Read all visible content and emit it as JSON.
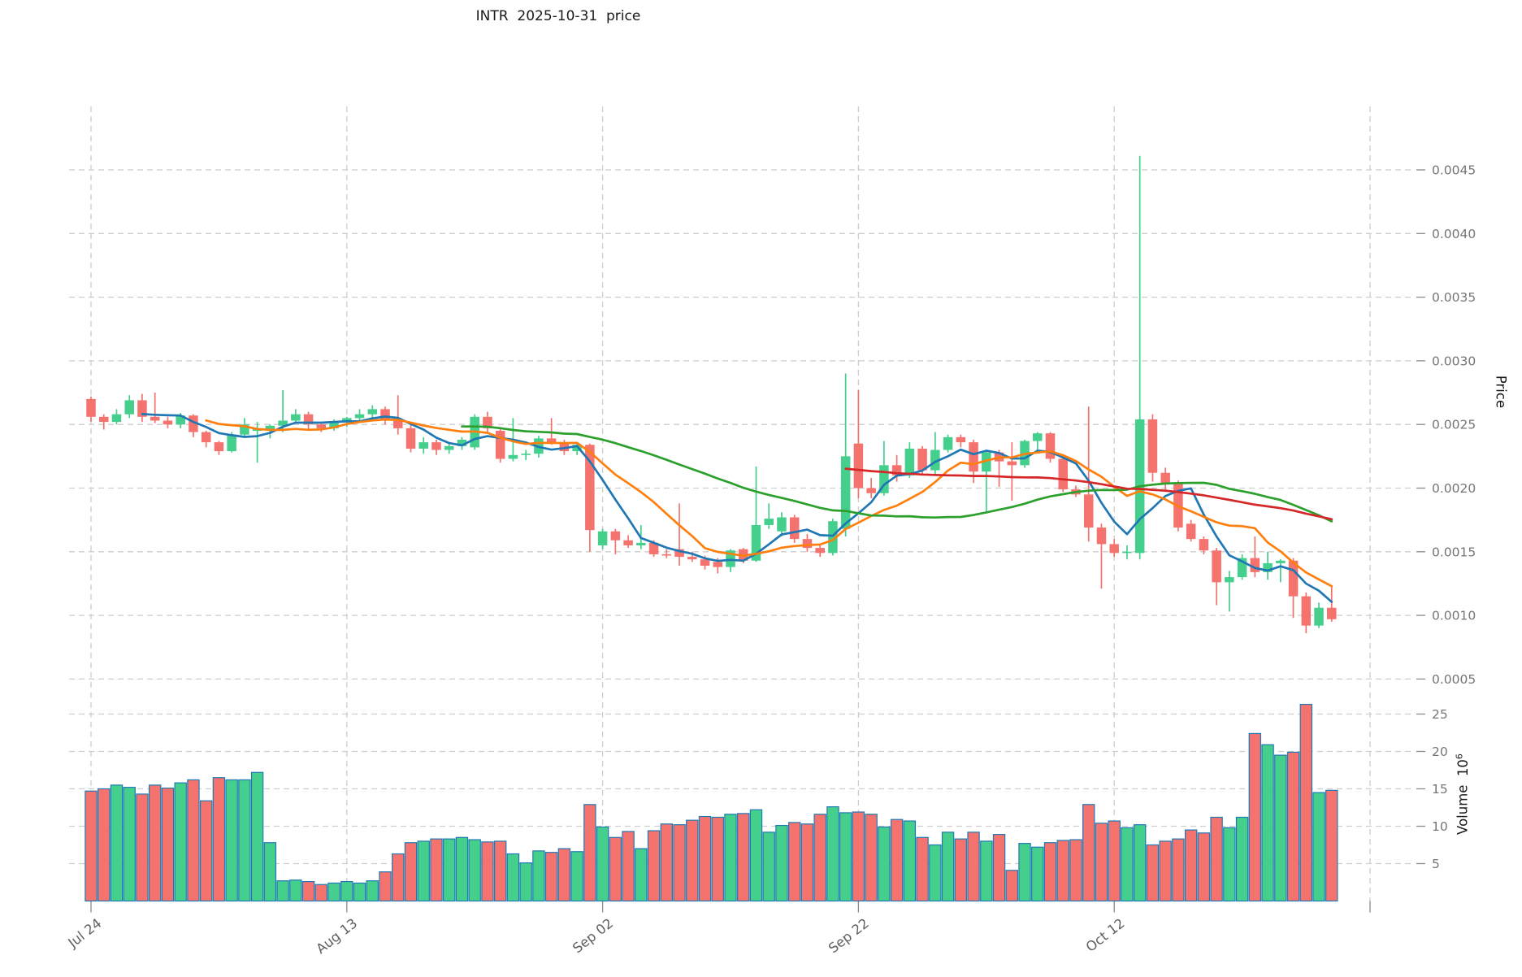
{
  "title": "INTR  2025-10-31  price",
  "chart_data": {
    "type": "candlestick",
    "title": "INTR  2025-10-31  price",
    "x_axis": {
      "tick_labels": [
        "Jul 24",
        "Aug 13",
        "Sep 02",
        "Sep 22",
        "Oct 12"
      ],
      "tick_days": [
        0,
        20,
        40,
        60,
        80,
        100
      ],
      "grid": true
    },
    "price_axis": {
      "label": "Price",
      "ticks": [
        0.0005,
        0.001,
        0.0015,
        0.002,
        0.0025,
        0.003,
        0.0035,
        0.004,
        0.0045
      ],
      "range": [
        0.0002,
        0.005
      ],
      "side": "right",
      "grid": true
    },
    "volume_axis": {
      "label": "Volume",
      "scale_base": "10",
      "scale_exp": "6",
      "ticks": [
        5,
        10,
        15,
        20,
        25
      ],
      "unit_multiplier": 1000000,
      "side": "right",
      "grid": true
    },
    "moving_averages": [
      {
        "name": "mav-5",
        "period": 5,
        "color": "#1f77b4"
      },
      {
        "name": "mav-10",
        "period": 10,
        "color": "#ff7f0e"
      },
      {
        "name": "mav-30",
        "period": 30,
        "color": "#2ca02c"
      },
      {
        "name": "mav-60",
        "period": 60,
        "color": "#d62728"
      }
    ],
    "colors": {
      "up": "#45cf8d",
      "down": "#f4736e",
      "volume_bar_edge": "#2079b4",
      "grid": "#cdcdcd",
      "tick_text": "#757575",
      "x_tick_text": "#5f5f5f"
    },
    "candle_format": [
      "open",
      "high",
      "low",
      "close",
      "volume_millions"
    ],
    "candles": [
      [
        0.0027,
        0.00272,
        0.00252,
        0.00256,
        14.7
      ],
      [
        0.00256,
        0.00258,
        0.00246,
        0.00252,
        15.0
      ],
      [
        0.00252,
        0.00262,
        0.0025,
        0.00258,
        15.5
      ],
      [
        0.00258,
        0.00273,
        0.00255,
        0.00269,
        15.2
      ],
      [
        0.00269,
        0.00274,
        0.00252,
        0.00256,
        14.3
      ],
      [
        0.00256,
        0.00275,
        0.00251,
        0.00253,
        15.5
      ],
      [
        0.00253,
        0.00256,
        0.00247,
        0.0025,
        15.1
      ],
      [
        0.0025,
        0.00259,
        0.00247,
        0.00257,
        15.8
      ],
      [
        0.00257,
        0.00258,
        0.0024,
        0.00244,
        16.2
      ],
      [
        0.00244,
        0.00245,
        0.00232,
        0.00236,
        13.4
      ],
      [
        0.00236,
        0.00237,
        0.00226,
        0.00229,
        16.5
      ],
      [
        0.00229,
        0.00244,
        0.00228,
        0.00242,
        16.2
      ],
      [
        0.00242,
        0.00255,
        0.00241,
        0.0025,
        16.2
      ],
      [
        0.00245,
        0.00252,
        0.0022,
        0.00247,
        17.2
      ],
      [
        0.00246,
        0.0025,
        0.00239,
        0.00249,
        7.8
      ],
      [
        0.00249,
        0.00277,
        0.00244,
        0.00253,
        2.7
      ],
      [
        0.00253,
        0.00262,
        0.00251,
        0.00258,
        2.8
      ],
      [
        0.00258,
        0.0026,
        0.00246,
        0.0025,
        2.6
      ],
      [
        0.0025,
        0.00252,
        0.00244,
        0.00247,
        2.2
      ],
      [
        0.00247,
        0.00254,
        0.00245,
        0.00252,
        2.4
      ],
      [
        0.00252,
        0.00256,
        0.00248,
        0.00255,
        2.6
      ],
      [
        0.00255,
        0.00262,
        0.00253,
        0.00258,
        2.4
      ],
      [
        0.00258,
        0.00265,
        0.00254,
        0.00262,
        2.7
      ],
      [
        0.00262,
        0.00264,
        0.0025,
        0.00254,
        3.9
      ],
      [
        0.00254,
        0.00273,
        0.00242,
        0.00247,
        6.3
      ],
      [
        0.00247,
        0.0025,
        0.00228,
        0.00231,
        7.8
      ],
      [
        0.00231,
        0.0024,
        0.00227,
        0.00236,
        8.0
      ],
      [
        0.00236,
        0.00238,
        0.00226,
        0.0023,
        8.3
      ],
      [
        0.0023,
        0.00236,
        0.00227,
        0.00233,
        8.3
      ],
      [
        0.00233,
        0.0024,
        0.0023,
        0.00238,
        8.5
      ],
      [
        0.00232,
        0.00258,
        0.0023,
        0.00256,
        8.2
      ],
      [
        0.00256,
        0.0026,
        0.00244,
        0.00247,
        7.9
      ],
      [
        0.00245,
        0.00247,
        0.0022,
        0.00223,
        8.0
      ],
      [
        0.00223,
        0.00255,
        0.00221,
        0.00226,
        6.3
      ],
      [
        0.00226,
        0.0023,
        0.00222,
        0.00227,
        5.1
      ],
      [
        0.00227,
        0.00241,
        0.00224,
        0.00239,
        6.7
      ],
      [
        0.00239,
        0.00255,
        0.00234,
        0.00236,
        6.5
      ],
      [
        0.00236,
        0.00238,
        0.00226,
        0.00229,
        7.0
      ],
      [
        0.00229,
        0.00236,
        0.00226,
        0.00234,
        6.6
      ],
      [
        0.00234,
        0.00235,
        0.0015,
        0.00167,
        12.9
      ],
      [
        0.00155,
        0.00168,
        0.00152,
        0.00166,
        9.9
      ],
      [
        0.00166,
        0.00168,
        0.00148,
        0.00159,
        8.5
      ],
      [
        0.00159,
        0.00163,
        0.00153,
        0.00155,
        9.3
      ],
      [
        0.00155,
        0.00171,
        0.00152,
        0.00157,
        7.0
      ],
      [
        0.00157,
        0.00159,
        0.00146,
        0.00148,
        9.4
      ],
      [
        0.00148,
        0.00152,
        0.00145,
        0.00147,
        10.3
      ],
      [
        0.00152,
        0.00188,
        0.00139,
        0.00146,
        10.2
      ],
      [
        0.00146,
        0.0015,
        0.00142,
        0.00144,
        10.8
      ],
      [
        0.00144,
        0.00147,
        0.00136,
        0.00139,
        11.3
      ],
      [
        0.00142,
        0.00145,
        0.00133,
        0.00138,
        11.2
      ],
      [
        0.00138,
        0.00152,
        0.00134,
        0.00151,
        11.6
      ],
      [
        0.00152,
        0.00153,
        0.00141,
        0.00143,
        11.7
      ],
      [
        0.00143,
        0.00217,
        0.00142,
        0.00171,
        12.2
      ],
      [
        0.00171,
        0.00188,
        0.00168,
        0.00176,
        9.2
      ],
      [
        0.00166,
        0.00181,
        0.00162,
        0.00177,
        10.1
      ],
      [
        0.00177,
        0.00179,
        0.00157,
        0.0016,
        10.5
      ],
      [
        0.0016,
        0.00164,
        0.0015,
        0.00153,
        10.3
      ],
      [
        0.00153,
        0.00156,
        0.00146,
        0.00149,
        11.6
      ],
      [
        0.00149,
        0.00176,
        0.00147,
        0.00174,
        12.6
      ],
      [
        0.00168,
        0.0029,
        0.00162,
        0.00225,
        11.8
      ],
      [
        0.00235,
        0.00277,
        0.00192,
        0.002,
        11.9
      ],
      [
        0.002,
        0.00208,
        0.00192,
        0.00196,
        11.6
      ],
      [
        0.00196,
        0.00237,
        0.00194,
        0.00218,
        9.9
      ],
      [
        0.00218,
        0.00226,
        0.00205,
        0.0021,
        10.9
      ],
      [
        0.0021,
        0.00236,
        0.00208,
        0.00231,
        10.7
      ],
      [
        0.00231,
        0.00233,
        0.0021,
        0.00214,
        8.5
      ],
      [
        0.00214,
        0.00244,
        0.0021,
        0.0023,
        7.5
      ],
      [
        0.0023,
        0.00242,
        0.00228,
        0.0024,
        9.2
      ],
      [
        0.0024,
        0.00242,
        0.00232,
        0.00236,
        8.3
      ],
      [
        0.00236,
        0.00238,
        0.00204,
        0.00213,
        9.2
      ],
      [
        0.00213,
        0.0023,
        0.0018,
        0.00228,
        8.0
      ],
      [
        0.00228,
        0.0023,
        0.00201,
        0.00221,
        8.9
      ],
      [
        0.00221,
        0.00236,
        0.0019,
        0.00218,
        4.1
      ],
      [
        0.00218,
        0.00238,
        0.00216,
        0.00237,
        7.7
      ],
      [
        0.00237,
        0.00244,
        0.00228,
        0.00243,
        7.2
      ],
      [
        0.00243,
        0.00244,
        0.0022,
        0.00223,
        7.8
      ],
      [
        0.00223,
        0.00226,
        0.00197,
        0.00199,
        8.1
      ],
      [
        0.00199,
        0.00202,
        0.00193,
        0.00195,
        8.2
      ],
      [
        0.00195,
        0.00264,
        0.00158,
        0.00169,
        12.9
      ],
      [
        0.00169,
        0.00172,
        0.00121,
        0.00156,
        10.4
      ],
      [
        0.00156,
        0.0016,
        0.00146,
        0.00149,
        10.7
      ],
      [
        0.00149,
        0.00155,
        0.00144,
        0.0015,
        9.8
      ],
      [
        0.00149,
        0.00461,
        0.00144,
        0.00254,
        10.2
      ],
      [
        0.00254,
        0.00258,
        0.00205,
        0.00212,
        7.5
      ],
      [
        0.00212,
        0.00216,
        0.00198,
        0.00204,
        8.0
      ],
      [
        0.00204,
        0.00206,
        0.00166,
        0.00169,
        8.3
      ],
      [
        0.00172,
        0.00175,
        0.00158,
        0.0016,
        9.5
      ],
      [
        0.0016,
        0.00162,
        0.00148,
        0.00151,
        9.1
      ],
      [
        0.00151,
        0.00153,
        0.00108,
        0.00126,
        11.2
      ],
      [
        0.00126,
        0.00135,
        0.00103,
        0.0013,
        9.8
      ],
      [
        0.0013,
        0.00148,
        0.00128,
        0.00145,
        11.2
      ],
      [
        0.00145,
        0.00162,
        0.0013,
        0.00134,
        22.4
      ],
      [
        0.00134,
        0.0015,
        0.00128,
        0.00141,
        20.9
      ],
      [
        0.00141,
        0.00144,
        0.00126,
        0.00143,
        19.5
      ],
      [
        0.00143,
        0.00145,
        0.00098,
        0.00115,
        19.9
      ],
      [
        0.00115,
        0.00118,
        0.00086,
        0.00092,
        26.3
      ],
      [
        0.00092,
        0.0011,
        0.0009,
        0.00106,
        14.5
      ],
      [
        0.00106,
        0.00123,
        0.00095,
        0.00097,
        14.8
      ]
    ]
  }
}
